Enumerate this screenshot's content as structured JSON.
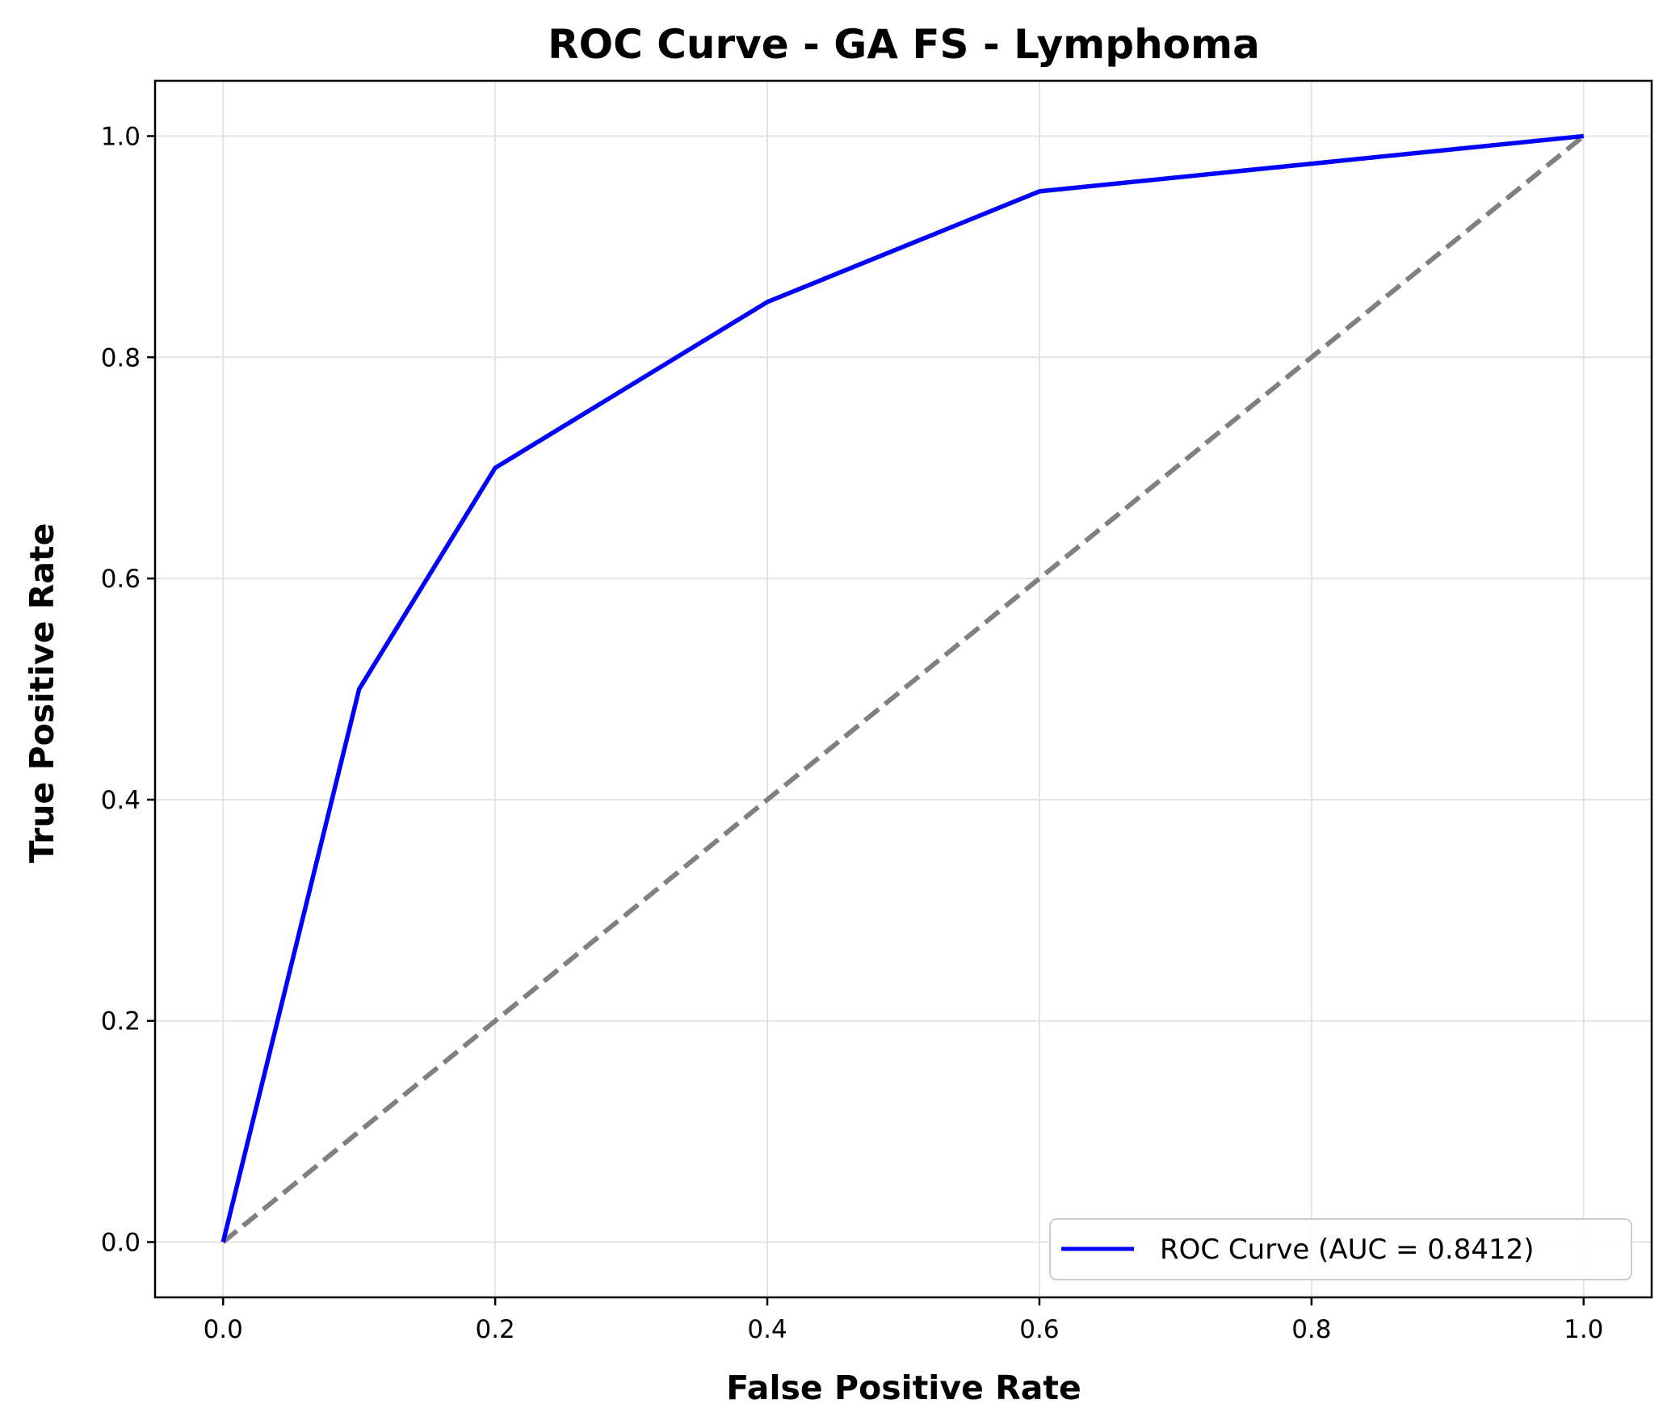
{
  "chart_data": {
    "type": "line",
    "title": "ROC Curve - GA FS - Lymphoma",
    "xlabel": "False Positive Rate",
    "ylabel": "True Positive Rate",
    "xlim": [
      -0.05,
      1.05
    ],
    "ylim": [
      -0.05,
      1.05
    ],
    "xticks": [
      0.0,
      0.2,
      0.4,
      0.6,
      0.8,
      1.0
    ],
    "xtick_labels": [
      "0.0",
      "0.2",
      "0.4",
      "0.6",
      "0.8",
      "1.0"
    ],
    "yticks": [
      0.0,
      0.2,
      0.4,
      0.6,
      0.8,
      1.0
    ],
    "ytick_labels": [
      "0.0",
      "0.2",
      "0.4",
      "0.6",
      "0.8",
      "1.0"
    ],
    "grid": true,
    "legend_position": "lower-right",
    "series": [
      {
        "name": "ROC Curve (AUC = 0.8412)",
        "color": "#0000ff",
        "style": "solid",
        "x": [
          0.0,
          0.1,
          0.2,
          0.4,
          0.6,
          1.0
        ],
        "y": [
          0.0,
          0.5,
          0.7,
          0.85,
          0.95,
          1.0
        ]
      },
      {
        "color": "#808080",
        "style": "dashed",
        "x": [
          0.0,
          1.0
        ],
        "y": [
          0.0,
          1.0
        ]
      }
    ]
  }
}
